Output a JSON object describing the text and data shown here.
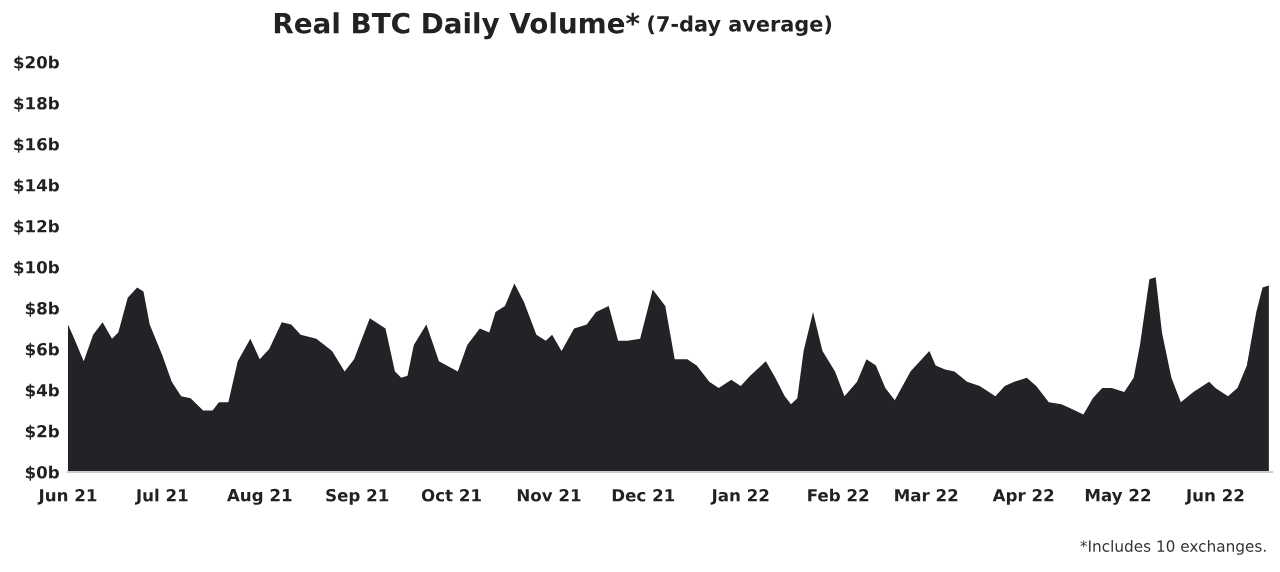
{
  "chart_data": {
    "type": "area",
    "title": "Real BTC Daily Volume*",
    "subtitle": "(7-day average)",
    "annotations": [
      "*Includes 10 exchanges."
    ],
    "x": [
      "2021-06-01",
      "2021-06-03",
      "2021-06-06",
      "2021-06-09",
      "2021-06-12",
      "2021-06-15",
      "2021-06-17",
      "2021-06-20",
      "2021-06-23",
      "2021-06-25",
      "2021-06-27",
      "2021-07-01",
      "2021-07-04",
      "2021-07-07",
      "2021-07-10",
      "2021-07-14",
      "2021-07-17",
      "2021-07-19",
      "2021-07-22",
      "2021-07-25",
      "2021-07-29",
      "2021-08-01",
      "2021-08-04",
      "2021-08-08",
      "2021-08-11",
      "2021-08-14",
      "2021-08-19",
      "2021-08-24",
      "2021-08-28",
      "2021-08-31",
      "2021-09-05",
      "2021-09-10",
      "2021-09-13",
      "2021-09-15",
      "2021-09-17",
      "2021-09-19",
      "2021-09-23",
      "2021-09-27",
      "2021-10-03",
      "2021-10-06",
      "2021-10-10",
      "2021-10-13",
      "2021-10-15",
      "2021-10-18",
      "2021-10-21",
      "2021-10-24",
      "2021-10-28",
      "2021-10-31",
      "2021-11-02",
      "2021-11-05",
      "2021-11-09",
      "2021-11-13",
      "2021-11-16",
      "2021-11-20",
      "2021-11-23",
      "2021-11-26",
      "2021-11-30",
      "2021-12-04",
      "2021-12-08",
      "2021-12-11",
      "2021-12-15",
      "2021-12-18",
      "2021-12-22",
      "2021-12-25",
      "2021-12-29",
      "2022-01-01",
      "2022-01-04",
      "2022-01-09",
      "2022-01-12",
      "2022-01-15",
      "2022-01-17",
      "2022-01-19",
      "2022-01-21",
      "2022-01-24",
      "2022-01-27",
      "2022-01-31",
      "2022-02-03",
      "2022-02-07",
      "2022-02-10",
      "2022-02-13",
      "2022-02-16",
      "2022-02-19",
      "2022-02-24",
      "2022-02-27",
      "2022-03-02",
      "2022-03-04",
      "2022-03-07",
      "2022-03-10",
      "2022-03-14",
      "2022-03-18",
      "2022-03-23",
      "2022-03-26",
      "2022-03-29",
      "2022-04-02",
      "2022-04-05",
      "2022-04-09",
      "2022-04-13",
      "2022-04-16",
      "2022-04-20",
      "2022-04-23",
      "2022-04-26",
      "2022-04-29",
      "2022-05-03",
      "2022-05-06",
      "2022-05-08",
      "2022-05-11",
      "2022-05-13",
      "2022-05-15",
      "2022-05-18",
      "2022-05-21",
      "2022-05-25",
      "2022-05-30",
      "2022-06-01",
      "2022-06-05",
      "2022-06-08",
      "2022-06-11",
      "2022-06-14",
      "2022-06-16",
      "2022-06-18"
    ],
    "series": [
      {
        "color": "#222326",
        "values": [
          7.2,
          6.5,
          5.4,
          6.7,
          7.3,
          6.5,
          6.8,
          8.5,
          9.0,
          8.8,
          7.2,
          5.7,
          4.4,
          3.7,
          3.6,
          3.0,
          3.0,
          3.4,
          3.4,
          5.4,
          6.5,
          5.5,
          6.0,
          7.3,
          7.2,
          6.7,
          6.5,
          5.9,
          4.9,
          5.5,
          7.5,
          7.0,
          4.9,
          4.6,
          4.7,
          6.2,
          7.2,
          5.4,
          4.9,
          6.2,
          7.0,
          6.8,
          7.8,
          8.1,
          9.2,
          8.3,
          6.7,
          6.4,
          6.7,
          5.9,
          7.0,
          7.2,
          7.8,
          8.1,
          6.4,
          6.4,
          6.5,
          8.9,
          8.1,
          5.5,
          5.5,
          5.2,
          4.4,
          4.1,
          4.5,
          4.2,
          4.7,
          5.4,
          4.6,
          3.7,
          3.3,
          3.6,
          5.9,
          7.8,
          5.9,
          4.9,
          3.7,
          4.4,
          5.5,
          5.2,
          4.1,
          3.5,
          4.9,
          5.4,
          5.9,
          5.2,
          5.0,
          4.9,
          4.4,
          4.2,
          3.7,
          4.2,
          4.4,
          4.6,
          4.2,
          3.4,
          3.3,
          3.1,
          2.8,
          3.6,
          4.1,
          4.1,
          3.9,
          4.6,
          6.2,
          9.4,
          9.5,
          6.8,
          4.6,
          3.4,
          3.9,
          4.4,
          4.1,
          3.7,
          4.1,
          5.2,
          7.8,
          9.0,
          9.1
        ]
      }
    ],
    "xlim": [
      "2021-06-01",
      "2022-06-19"
    ],
    "xticks": [
      {
        "value": "2021-06-01",
        "label": "Jun 21"
      },
      {
        "value": "2021-07-01",
        "label": "Jul 21"
      },
      {
        "value": "2021-08-01",
        "label": "Aug 21"
      },
      {
        "value": "2021-09-01",
        "label": "Sep 21"
      },
      {
        "value": "2021-10-01",
        "label": "Oct 21"
      },
      {
        "value": "2021-11-01",
        "label": "Nov 21"
      },
      {
        "value": "2021-12-01",
        "label": "Dec 21"
      },
      {
        "value": "2022-01-01",
        "label": "Jan 22"
      },
      {
        "value": "2022-02-01",
        "label": "Feb 22"
      },
      {
        "value": "2022-03-01",
        "label": "Mar 22"
      },
      {
        "value": "2022-04-01",
        "label": "Apr 22"
      },
      {
        "value": "2022-05-01",
        "label": "May 22"
      },
      {
        "value": "2022-06-01",
        "label": "Jun 22"
      }
    ],
    "ylim": [
      0,
      20
    ],
    "yticks": [
      {
        "value": 0,
        "label": "$0b"
      },
      {
        "value": 2,
        "label": "$2b"
      },
      {
        "value": 4,
        "label": "$4b"
      },
      {
        "value": 6,
        "label": "$6b"
      },
      {
        "value": 8,
        "label": "$8b"
      },
      {
        "value": 10,
        "label": "$10b"
      },
      {
        "value": 12,
        "label": "$12b"
      },
      {
        "value": 14,
        "label": "$14b"
      },
      {
        "value": 16,
        "label": "$16b"
      },
      {
        "value": 18,
        "label": "$18b"
      },
      {
        "value": 20,
        "label": "$20b"
      }
    ],
    "grid": false,
    "legend": false
  }
}
